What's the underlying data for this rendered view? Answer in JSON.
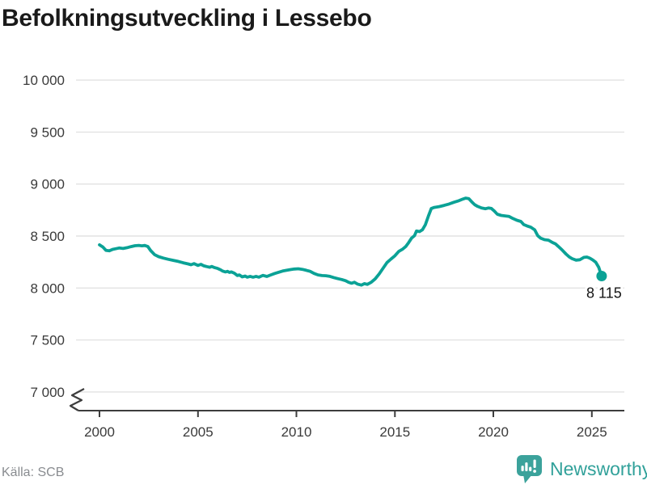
{
  "chart_data": {
    "type": "line",
    "title": "Befolkningsutveckling i Lessebo",
    "xlabel": "",
    "ylabel": "",
    "grid": "horizontal",
    "legend": "none",
    "axis_break": true,
    "xlim": [
      2000,
      2026.6
    ],
    "ylim": [
      7000,
      10000
    ],
    "x_ticks": [
      2000,
      2005,
      2010,
      2015,
      2020,
      2025
    ],
    "y_ticks": [
      {
        "value": 10000,
        "label": "10 000"
      },
      {
        "value": 9500,
        "label": "9 500"
      },
      {
        "value": 9000,
        "label": "9 000"
      },
      {
        "value": 8500,
        "label": "8 500"
      },
      {
        "value": 8000,
        "label": "8 000"
      },
      {
        "value": 7500,
        "label": "7 500"
      },
      {
        "value": 7000,
        "label": "7 000"
      }
    ],
    "end_point": {
      "x": 2025.5,
      "y": 8115,
      "label": "8 115"
    },
    "series": [
      {
        "points": [
          [
            2000.0,
            8415
          ],
          [
            2000.17,
            8395
          ],
          [
            2000.33,
            8362
          ],
          [
            2000.5,
            8358
          ],
          [
            2000.67,
            8372
          ],
          [
            2000.83,
            8378
          ],
          [
            2001.0,
            8385
          ],
          [
            2001.2,
            8380
          ],
          [
            2001.4,
            8388
          ],
          [
            2001.6,
            8398
          ],
          [
            2001.8,
            8407
          ],
          [
            2002.0,
            8410
          ],
          [
            2002.15,
            8406
          ],
          [
            2002.3,
            8409
          ],
          [
            2002.45,
            8400
          ],
          [
            2002.6,
            8360
          ],
          [
            2002.8,
            8320
          ],
          [
            2003.0,
            8302
          ],
          [
            2003.25,
            8288
          ],
          [
            2003.5,
            8276
          ],
          [
            2003.75,
            8266
          ],
          [
            2004.0,
            8256
          ],
          [
            2004.25,
            8243
          ],
          [
            2004.5,
            8232
          ],
          [
            2004.65,
            8224
          ],
          [
            2004.8,
            8235
          ],
          [
            2005.0,
            8217
          ],
          [
            2005.15,
            8228
          ],
          [
            2005.3,
            8213
          ],
          [
            2005.45,
            8206
          ],
          [
            2005.6,
            8200
          ],
          [
            2005.7,
            8208
          ],
          [
            2005.85,
            8196
          ],
          [
            2006.0,
            8188
          ],
          [
            2006.15,
            8175
          ],
          [
            2006.25,
            8163
          ],
          [
            2006.4,
            8155
          ],
          [
            2006.5,
            8160
          ],
          [
            2006.6,
            8150
          ],
          [
            2006.7,
            8155
          ],
          [
            2006.85,
            8142
          ],
          [
            2007.0,
            8120
          ],
          [
            2007.1,
            8126
          ],
          [
            2007.25,
            8107
          ],
          [
            2007.4,
            8115
          ],
          [
            2007.5,
            8104
          ],
          [
            2007.65,
            8112
          ],
          [
            2007.8,
            8104
          ],
          [
            2007.95,
            8112
          ],
          [
            2008.1,
            8104
          ],
          [
            2008.3,
            8121
          ],
          [
            2008.5,
            8111
          ],
          [
            2008.7,
            8126
          ],
          [
            2008.9,
            8140
          ],
          [
            2009.1,
            8152
          ],
          [
            2009.3,
            8163
          ],
          [
            2009.5,
            8170
          ],
          [
            2009.7,
            8177
          ],
          [
            2009.9,
            8183
          ],
          [
            2010.1,
            8185
          ],
          [
            2010.3,
            8180
          ],
          [
            2010.5,
            8170
          ],
          [
            2010.7,
            8160
          ],
          [
            2010.9,
            8140
          ],
          [
            2011.1,
            8126
          ],
          [
            2011.3,
            8120
          ],
          [
            2011.5,
            8118
          ],
          [
            2011.7,
            8112
          ],
          [
            2011.9,
            8100
          ],
          [
            2012.1,
            8090
          ],
          [
            2012.3,
            8082
          ],
          [
            2012.5,
            8070
          ],
          [
            2012.65,
            8055
          ],
          [
            2012.8,
            8046
          ],
          [
            2012.95,
            8055
          ],
          [
            2013.1,
            8038
          ],
          [
            2013.3,
            8028
          ],
          [
            2013.45,
            8042
          ],
          [
            2013.6,
            8035
          ],
          [
            2013.8,
            8055
          ],
          [
            2014.0,
            8088
          ],
          [
            2014.2,
            8135
          ],
          [
            2014.4,
            8190
          ],
          [
            2014.6,
            8245
          ],
          [
            2014.8,
            8278
          ],
          [
            2015.0,
            8310
          ],
          [
            2015.2,
            8352
          ],
          [
            2015.4,
            8375
          ],
          [
            2015.55,
            8398
          ],
          [
            2015.7,
            8437
          ],
          [
            2015.85,
            8480
          ],
          [
            2016.0,
            8505
          ],
          [
            2016.1,
            8548
          ],
          [
            2016.25,
            8543
          ],
          [
            2016.4,
            8560
          ],
          [
            2016.55,
            8610
          ],
          [
            2016.7,
            8690
          ],
          [
            2016.85,
            8765
          ],
          [
            2017.0,
            8775
          ],
          [
            2017.25,
            8783
          ],
          [
            2017.5,
            8795
          ],
          [
            2017.75,
            8808
          ],
          [
            2018.0,
            8825
          ],
          [
            2018.25,
            8840
          ],
          [
            2018.45,
            8855
          ],
          [
            2018.6,
            8865
          ],
          [
            2018.75,
            8860
          ],
          [
            2018.9,
            8830
          ],
          [
            2019.05,
            8802
          ],
          [
            2019.2,
            8785
          ],
          [
            2019.4,
            8770
          ],
          [
            2019.6,
            8763
          ],
          [
            2019.75,
            8770
          ],
          [
            2019.9,
            8765
          ],
          [
            2020.05,
            8740
          ],
          [
            2020.2,
            8710
          ],
          [
            2020.4,
            8698
          ],
          [
            2020.6,
            8694
          ],
          [
            2020.8,
            8688
          ],
          [
            2021.0,
            8668
          ],
          [
            2021.2,
            8652
          ],
          [
            2021.4,
            8640
          ],
          [
            2021.55,
            8610
          ],
          [
            2021.7,
            8598
          ],
          [
            2021.9,
            8585
          ],
          [
            2022.1,
            8560
          ],
          [
            2022.25,
            8505
          ],
          [
            2022.4,
            8480
          ],
          [
            2022.6,
            8465
          ],
          [
            2022.8,
            8460
          ],
          [
            2023.0,
            8438
          ],
          [
            2023.15,
            8425
          ],
          [
            2023.3,
            8400
          ],
          [
            2023.5,
            8365
          ],
          [
            2023.7,
            8325
          ],
          [
            2023.85,
            8300
          ],
          [
            2024.0,
            8282
          ],
          [
            2024.2,
            8268
          ],
          [
            2024.4,
            8272
          ],
          [
            2024.6,
            8295
          ],
          [
            2024.75,
            8298
          ],
          [
            2024.9,
            8287
          ],
          [
            2025.05,
            8270
          ],
          [
            2025.2,
            8248
          ],
          [
            2025.35,
            8200
          ],
          [
            2025.5,
            8115
          ]
        ]
      }
    ]
  },
  "footer": {
    "source": "Källa: SCB",
    "brand": "Newsworthy"
  },
  "colors": {
    "line": "#0BA296",
    "logo": "#3BA29B",
    "grid": "#E2E2E2",
    "axis": "#3D3D3D",
    "title": "#1A1A1A",
    "tick_text": "#3A3A3A",
    "source_text": "#898C90"
  }
}
